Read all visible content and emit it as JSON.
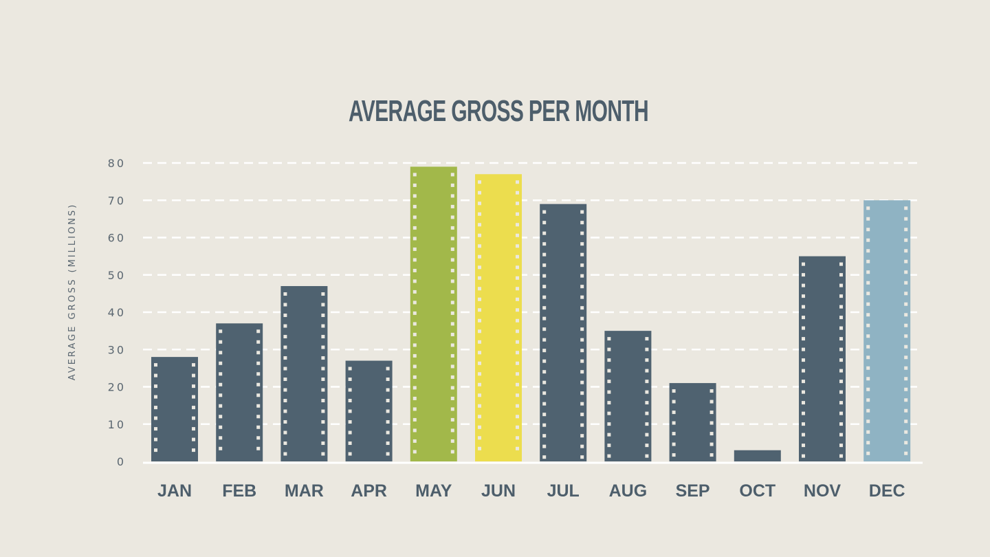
{
  "chart_data": {
    "type": "bar",
    "title": "AVERAGE GROSS PER MONTH",
    "xlabel": "",
    "ylabel": "AVERAGE GROSS (MILLIONS)",
    "ylim": [
      0,
      80
    ],
    "yticks": [
      0,
      10,
      20,
      30,
      40,
      50,
      60,
      70,
      80
    ],
    "grid": true,
    "categories": [
      "JAN",
      "FEB",
      "MAR",
      "APR",
      "MAY",
      "JUN",
      "JUL",
      "AUG",
      "SEP",
      "OCT",
      "NOV",
      "DEC"
    ],
    "values": [
      28,
      37,
      47,
      27,
      79,
      77,
      69,
      35,
      21,
      3,
      55,
      70
    ],
    "bar_colors": [
      "#4f6270",
      "#4f6270",
      "#4f6270",
      "#4f6270",
      "#a2b84a",
      "#ecdd4e",
      "#4f6270",
      "#4f6270",
      "#4f6270",
      "#4f6270",
      "#4f6270",
      "#8fb3c3"
    ]
  },
  "colors": {
    "background": "#ebe8e0",
    "text": "#4d5e6b",
    "grid": "#ffffff",
    "axis": "#ffffff",
    "film_holes": "#ebe8e0"
  }
}
